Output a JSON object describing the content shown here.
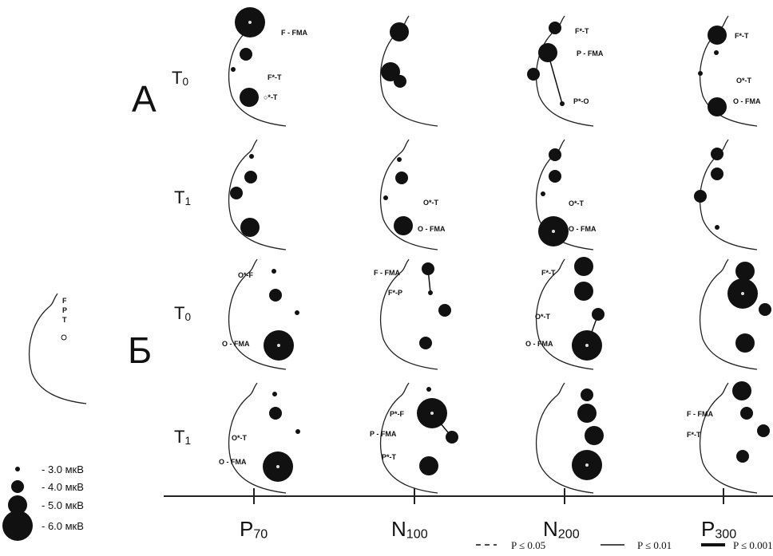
{
  "figure": {
    "groups": [
      "А",
      "Б"
    ],
    "rows": [
      {
        "main": "T",
        "sub": "0"
      },
      {
        "main": "T",
        "sub": "1"
      },
      {
        "main": "T",
        "sub": "0"
      },
      {
        "main": "T",
        "sub": "1"
      }
    ],
    "columns": [
      {
        "main": "P",
        "sub": "70"
      },
      {
        "main": "N",
        "sub": "100"
      },
      {
        "main": "N",
        "sub": "200"
      },
      {
        "main": "P",
        "sub": "300"
      }
    ],
    "annotations": [
      [
        "F - FMA",
        "F*-T",
        "○*-T"
      ],
      [],
      [
        "F*-T",
        "P - FMA",
        "P*-O"
      ],
      [
        "F*-T",
        "O*-T",
        "O - FMA"
      ],
      [],
      [
        "O*-T",
        "O - FMA"
      ],
      [
        "O*-T",
        "O - FMA"
      ],
      [],
      [
        "O*-F",
        "O - FMA"
      ],
      [
        "F - FMA",
        "F*-P"
      ],
      [
        "F*-T",
        "O*-T",
        "O - FMA"
      ],
      [],
      [
        "O*-T",
        "O - FMA"
      ],
      [
        "P*-F",
        "P - FMA",
        "P*-T"
      ],
      [],
      [
        "F - FMA",
        "F*-T"
      ]
    ],
    "head_key": [
      "F",
      "P",
      "T"
    ],
    "size_legend": [
      "- 3.0 мкВ",
      "- 4.0 мкВ",
      "- 5.0 мкВ",
      "- 6.0 мкВ"
    ],
    "significance_legend": [
      "P ≤ 0.05",
      "P ≤ 0.01",
      "P ≤ 0.001"
    ]
  }
}
